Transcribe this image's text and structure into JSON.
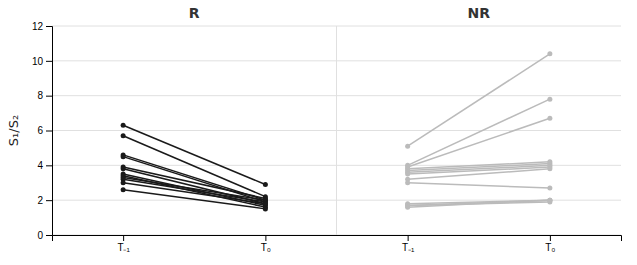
{
  "chart_data": {
    "type": "line",
    "ylabel": "S₁/S₂",
    "categories": [
      "T₋₁",
      "T₀",
      "T₋₁",
      "T₀"
    ],
    "annotations": [
      "R",
      "NR"
    ],
    "ylim": [
      0,
      12
    ],
    "yticks": [
      0,
      2,
      4,
      6,
      8,
      10,
      12
    ],
    "grid": true,
    "marker": "circle",
    "series": [
      {
        "color": "#1a1a1a",
        "values": [
          6.3,
          2.9,
          null,
          null
        ]
      },
      {
        "color": "#1a1a1a",
        "values": [
          5.7,
          2.2,
          null,
          null
        ]
      },
      {
        "color": "#1a1a1a",
        "values": [
          4.6,
          2.0,
          null,
          null
        ]
      },
      {
        "color": "#1a1a1a",
        "values": [
          4.5,
          1.9,
          null,
          null
        ]
      },
      {
        "color": "#1a1a1a",
        "values": [
          3.9,
          2.1,
          null,
          null
        ]
      },
      {
        "color": "#1a1a1a",
        "values": [
          3.8,
          1.8,
          null,
          null
        ]
      },
      {
        "color": "#1a1a1a",
        "values": [
          3.5,
          1.7,
          null,
          null
        ]
      },
      {
        "color": "#1a1a1a",
        "values": [
          3.4,
          1.6,
          null,
          null
        ]
      },
      {
        "color": "#1a1a1a",
        "values": [
          3.3,
          2.0,
          null,
          null
        ]
      },
      {
        "color": "#1a1a1a",
        "values": [
          3.2,
          1.9,
          null,
          null
        ]
      },
      {
        "color": "#1a1a1a",
        "values": [
          3.0,
          1.8,
          null,
          null
        ]
      },
      {
        "color": "#1a1a1a",
        "values": [
          2.6,
          1.5,
          null,
          null
        ]
      },
      {
        "color": "#bbbbbb",
        "values": [
          null,
          null,
          5.1,
          10.4
        ]
      },
      {
        "color": "#bbbbbb",
        "values": [
          null,
          null,
          4.0,
          7.8
        ]
      },
      {
        "color": "#bbbbbb",
        "values": [
          null,
          null,
          3.9,
          6.7
        ]
      },
      {
        "color": "#bbbbbb",
        "values": [
          null,
          null,
          3.8,
          4.2
        ]
      },
      {
        "color": "#bbbbbb",
        "values": [
          null,
          null,
          3.7,
          4.1
        ]
      },
      {
        "color": "#bbbbbb",
        "values": [
          null,
          null,
          3.6,
          4.0
        ]
      },
      {
        "color": "#bbbbbb",
        "values": [
          null,
          null,
          3.5,
          3.9
        ]
      },
      {
        "color": "#bbbbbb",
        "values": [
          null,
          null,
          3.2,
          3.8
        ]
      },
      {
        "color": "#bbbbbb",
        "values": [
          null,
          null,
          3.0,
          2.7
        ]
      },
      {
        "color": "#bbbbbb",
        "values": [
          null,
          null,
          1.8,
          2.0
        ]
      },
      {
        "color": "#bbbbbb",
        "values": [
          null,
          null,
          1.7,
          2.0
        ]
      },
      {
        "color": "#bbbbbb",
        "values": [
          null,
          null,
          1.7,
          1.9
        ]
      },
      {
        "color": "#bbbbbb",
        "values": [
          null,
          null,
          1.6,
          2.0
        ]
      }
    ]
  }
}
